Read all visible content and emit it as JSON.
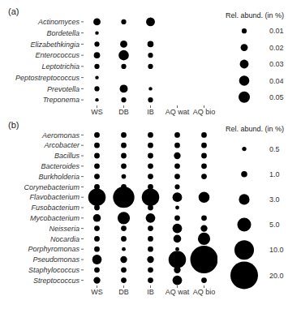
{
  "chart_data": [
    {
      "type": "scatter",
      "title": "(a)",
      "categories": [
        "WS",
        "DB",
        "IB",
        "AQ wat",
        "AQ bio"
      ],
      "y_categories": [
        "Actinomyces",
        "Bordetella",
        "Elizabethkingia",
        "Enterococcus",
        "Leptotrichia",
        "Peptostreptococcus",
        "Prevotella",
        "Treponema"
      ],
      "sizes": [
        [
          0.02,
          0.01,
          0.03,
          null,
          null
        ],
        [
          0.005,
          null,
          null,
          null,
          null
        ],
        [
          0.01,
          0.02,
          0.015,
          null,
          null
        ],
        [
          0.015,
          0.04,
          0.01,
          null,
          null
        ],
        [
          0.01,
          0.01,
          0.01,
          null,
          null
        ],
        [
          0.005,
          null,
          null,
          null,
          null
        ],
        [
          0.01,
          0.025,
          0.005,
          null,
          null
        ],
        [
          0.005,
          0.01,
          0.01,
          null,
          null
        ]
      ],
      "size_legend": {
        "title": "Rel. abund. (in %)",
        "values": [
          0.01,
          0.02,
          0.03,
          0.04,
          0.05
        ]
      },
      "color": "#000000"
    },
    {
      "type": "scatter",
      "title": "(b)",
      "categories": [
        "WS",
        "DB",
        "IB",
        "AQ wat",
        "AQ bio"
      ],
      "y_categories": [
        "Aeromonas",
        "Arcobacter",
        "Bacillus",
        "Bacteroides",
        "Burkholderia",
        "Corynebacterium",
        "Flavobacterium",
        "Fusobacterium",
        "Mycobacterium",
        "Neisseria",
        "Nocardia",
        "Porphyromonas",
        "Pseudomonas",
        "Staphylococcus",
        "Streptococcus"
      ],
      "sizes": [
        [
          1,
          1,
          1,
          1,
          1
        ],
        [
          1,
          1,
          1,
          1,
          1
        ],
        [
          1,
          1,
          1,
          1.5,
          1
        ],
        [
          1,
          1,
          1,
          1,
          1
        ],
        [
          1,
          0.7,
          1,
          1,
          1
        ],
        [
          1,
          1,
          1,
          0.8,
          null
        ],
        [
          10,
          15,
          10,
          3,
          4
        ],
        [
          1,
          null,
          1,
          0.5,
          null
        ],
        [
          2,
          5,
          3,
          1,
          1
        ],
        [
          1,
          1,
          1,
          3,
          1.5
        ],
        [
          1,
          1,
          1,
          2,
          5
        ],
        [
          1,
          0.5,
          1,
          0.5,
          null
        ],
        [
          3,
          1.5,
          1.5,
          10,
          25
        ],
        [
          1,
          1,
          1,
          1.5,
          1
        ],
        [
          1.5,
          1,
          1,
          3,
          1
        ]
      ],
      "size_legend": {
        "title": "Rel. abund. (in %)",
        "values": [
          0.5,
          {
            "value": 1,
            "label": "1.0"
          },
          {
            "value": 3,
            "label": "3.0"
          },
          {
            "value": 5,
            "label": "5.0"
          },
          {
            "value": 10,
            "label": "10.0"
          },
          {
            "value": 20,
            "label": "20.0"
          }
        ]
      },
      "color": "#000000"
    }
  ]
}
